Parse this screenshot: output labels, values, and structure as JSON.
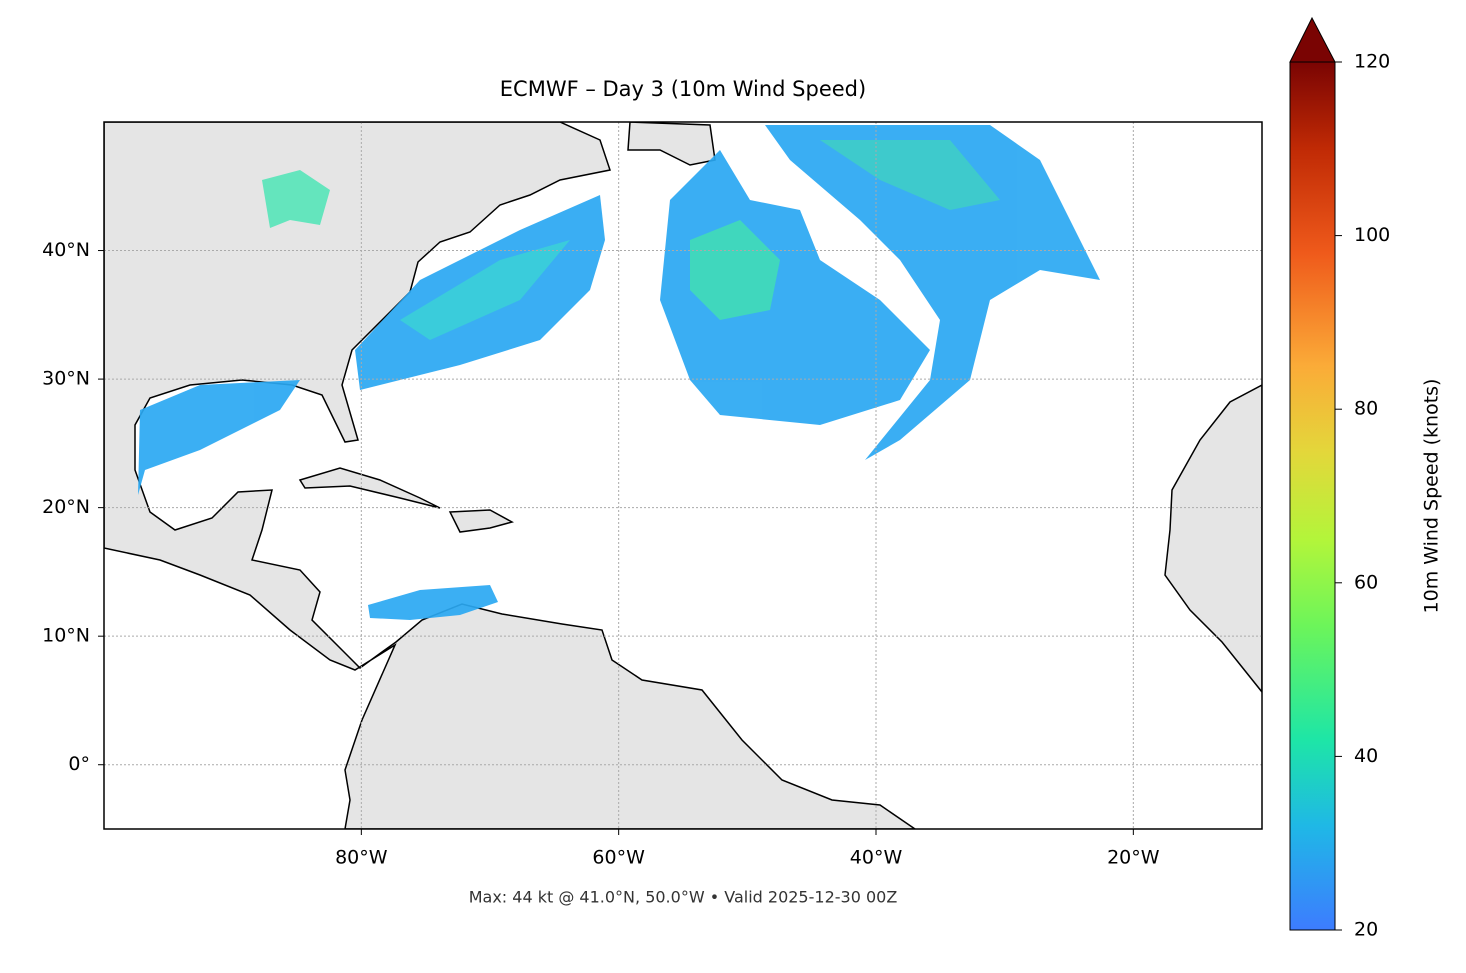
{
  "map": {
    "title": "ECMWF – Day 3 (10m Wind Speed)",
    "note": "Max: 44 kt @ 41.0°N, 50.0°W • Valid 2025-12-30 00Z",
    "xlim": [
      -100,
      -10
    ],
    "ylim": [
      -5,
      50
    ],
    "xticks": [
      {
        "value": -80,
        "label": "80°W"
      },
      {
        "value": -60,
        "label": "60°W"
      },
      {
        "value": -40,
        "label": "40°W"
      },
      {
        "value": -20,
        "label": "20°W"
      }
    ],
    "yticks": [
      {
        "value": 0,
        "label": "0°"
      },
      {
        "value": 10,
        "label": "10°N"
      },
      {
        "value": 20,
        "label": "20°N"
      },
      {
        "value": 30,
        "label": "30°N"
      },
      {
        "value": 40,
        "label": "40°N"
      }
    ],
    "grid": true
  },
  "colorbar": {
    "label": "10m Wind Speed (knots)",
    "lim": [
      20,
      120
    ],
    "ticks": [
      20,
      40,
      60,
      80,
      100,
      120
    ]
  }
}
